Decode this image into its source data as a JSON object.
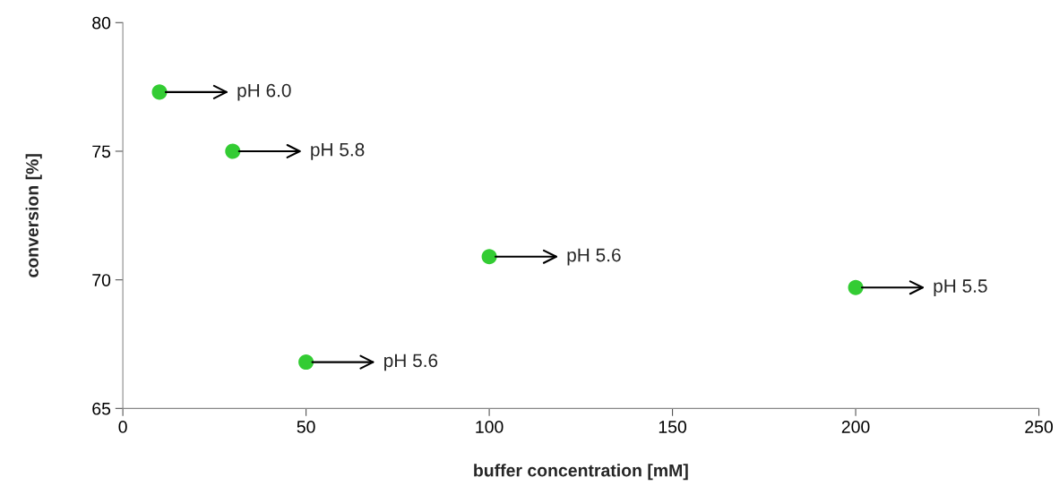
{
  "chart_data": {
    "type": "scatter",
    "xlabel": "buffer concentration [mM]",
    "ylabel": "conversion [%]",
    "x": [
      10,
      30,
      50,
      100,
      200
    ],
    "series": [
      {
        "color": "#33cc33",
        "values": [
          77.3,
          75.0,
          66.8,
          70.9,
          69.7
        ]
      }
    ],
    "marker": "circle",
    "xlim": [
      0,
      250
    ],
    "ylim": [
      65,
      80
    ],
    "xticks": [
      0,
      50,
      100,
      150,
      200,
      250
    ],
    "yticks": [
      65,
      70,
      75,
      80
    ],
    "grid": false,
    "annotations": [
      {
        "text": "pH 6.0",
        "x": 10,
        "y": 77.3
      },
      {
        "text": "pH 5.8",
        "x": 30,
        "y": 75.0
      },
      {
        "text": "pH 5.6",
        "x": 50,
        "y": 66.8
      },
      {
        "text": "pH 5.6",
        "x": 100,
        "y": 70.9
      },
      {
        "text": "pH 5.5",
        "x": 200,
        "y": 69.7
      }
    ]
  }
}
